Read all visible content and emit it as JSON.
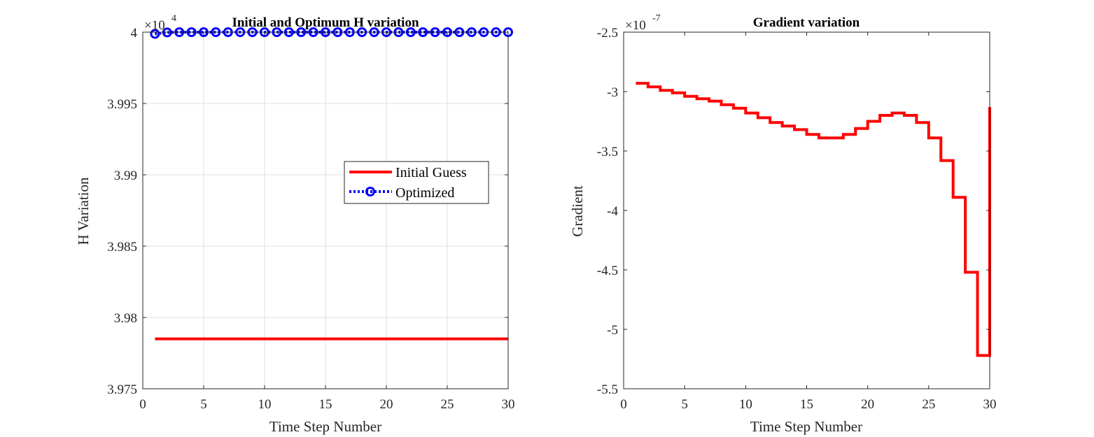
{
  "chart_data": [
    {
      "type": "line",
      "title": "Initial and Optimum H variation",
      "xlabel": "Time Step Number",
      "ylabel": "H Variation",
      "xlim": [
        0,
        30
      ],
      "ylim": [
        39750,
        40000
      ],
      "x_ticks": [
        0,
        5,
        10,
        15,
        20,
        25,
        30
      ],
      "y_ticks": [
        39750,
        39800,
        39850,
        39900,
        39950,
        40000
      ],
      "y_tick_labels": [
        "3.975",
        "3.98",
        "3.985",
        "3.99",
        "3.995",
        "4"
      ],
      "y_exponent_base": "×10",
      "y_exponent_power": "4",
      "grid": true,
      "legend_position": "center-right",
      "x": [
        1,
        2,
        3,
        4,
        5,
        6,
        7,
        8,
        9,
        10,
        11,
        12,
        13,
        14,
        15,
        16,
        17,
        18,
        19,
        20,
        21,
        22,
        23,
        24,
        25,
        26,
        27,
        28,
        29,
        30
      ],
      "series": [
        {
          "name": "Initial Guess",
          "color": "#ff0000",
          "style": "solid",
          "values": [
            39785,
            39785,
            39785,
            39785,
            39785,
            39785,
            39785,
            39785,
            39785,
            39785,
            39785,
            39785,
            39785,
            39785,
            39785,
            39785,
            39785,
            39785,
            39785,
            39785,
            39785,
            39785,
            39785,
            39785,
            39785,
            39785,
            39785,
            39785,
            39785,
            39785
          ]
        },
        {
          "name": "Optimized",
          "color": "#0000ff",
          "style": "dotted-circle",
          "values": [
            39998.8,
            39999.8,
            40000,
            40000,
            40000,
            40000,
            40000,
            40000,
            40000,
            40000,
            40000,
            40000,
            40000,
            40000,
            40000,
            40000,
            40000,
            40000,
            40000,
            40000,
            40000,
            40000,
            40000,
            40000,
            40000,
            40000,
            40000,
            40000,
            40000,
            40000
          ]
        }
      ]
    },
    {
      "type": "line",
      "title": "Gradient variation",
      "xlabel": "Time Step Number",
      "ylabel": "Gradient",
      "xlim": [
        0,
        30
      ],
      "ylim": [
        -5.5e-07,
        -2.5e-07
      ],
      "x_ticks": [
        0,
        5,
        10,
        15,
        20,
        25,
        30
      ],
      "y_ticks": [
        -5.5e-07,
        -5e-07,
        -4.5e-07,
        -4e-07,
        -3.5e-07,
        -3e-07,
        -2.5e-07
      ],
      "y_tick_labels": [
        "-5.5",
        "-5",
        "-4.5",
        "-4",
        "-3.5",
        "-3",
        "-2.5"
      ],
      "y_exponent_base": "×10",
      "y_exponent_power": "-7",
      "grid": false,
      "step": "post",
      "x": [
        1,
        2,
        3,
        4,
        5,
        6,
        7,
        8,
        9,
        10,
        11,
        12,
        13,
        14,
        15,
        16,
        17,
        18,
        19,
        20,
        21,
        22,
        23,
        24,
        25,
        26,
        27,
        28,
        29,
        30
      ],
      "series": [
        {
          "name": "",
          "color": "#ff0000",
          "style": "solid",
          "values": [
            -2.93e-07,
            -2.96e-07,
            -2.99e-07,
            -3.01e-07,
            -3.04e-07,
            -3.06e-07,
            -3.08e-07,
            -3.11e-07,
            -3.14e-07,
            -3.18e-07,
            -3.22e-07,
            -3.26e-07,
            -3.29e-07,
            -3.32e-07,
            -3.36e-07,
            -3.39e-07,
            -3.39e-07,
            -3.36e-07,
            -3.31e-07,
            -3.25e-07,
            -3.2e-07,
            -3.18e-07,
            -3.2e-07,
            -3.26e-07,
            -3.39e-07,
            -3.58e-07,
            -3.89e-07,
            -4.52e-07,
            -5.22e-07,
            -3.13e-07
          ]
        }
      ]
    }
  ]
}
